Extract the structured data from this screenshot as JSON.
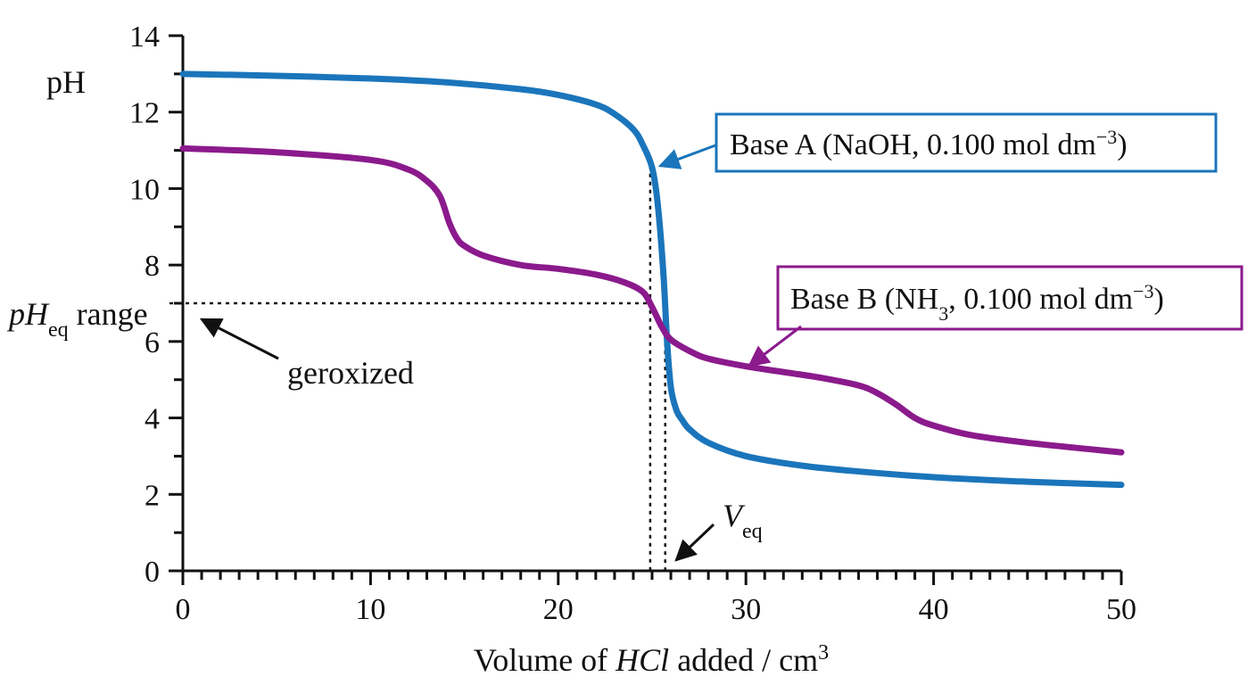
{
  "chart_data": {
    "type": "line",
    "xlabel": {
      "pre": "Volume of ",
      "italic": "HCl",
      "post": " added / cm",
      "sup": "3"
    },
    "ylabel": "pH",
    "xlim": [
      0,
      50
    ],
    "ylim": [
      0,
      14
    ],
    "x_ticks": [
      0,
      10,
      20,
      30,
      40,
      50
    ],
    "x_tick_labels": [
      "0",
      "10",
      "20",
      "30",
      "40",
      "50"
    ],
    "x_minor_step": 1,
    "y_ticks": [
      0,
      2,
      4,
      6,
      8,
      10,
      12,
      14
    ],
    "y_tick_labels": [
      "0",
      "2",
      "4",
      "6",
      "8",
      "10",
      "12",
      "14"
    ],
    "y_minor_step": 1,
    "grid": false,
    "series": [
      {
        "name": "Base A",
        "label": {
          "pre": "Base A (NaOH, 0.100 mol dm",
          "sup": "−3",
          "post": ")"
        },
        "color": "#1b75bb",
        "x": [
          0,
          5,
          10,
          14,
          18,
          20,
          22,
          23,
          24,
          24.5,
          25,
          25.3,
          25.6,
          25.8,
          26,
          26.3,
          26.6,
          27,
          28,
          30,
          33,
          36,
          40,
          45,
          50
        ],
        "y": [
          13.0,
          12.95,
          12.88,
          12.78,
          12.6,
          12.45,
          12.2,
          11.95,
          11.55,
          11.15,
          10.55,
          9.6,
          7.8,
          6.0,
          4.8,
          4.2,
          3.95,
          3.7,
          3.35,
          3.0,
          2.75,
          2.6,
          2.45,
          2.33,
          2.25
        ]
      },
      {
        "name": "Base B",
        "label": {
          "pre": "Base B (NH",
          "sub": "3",
          "post2": ", 0.100 mol dm",
          "sup": "−3",
          "post": ")"
        },
        "color": "#8b1a8c",
        "x": [
          0,
          5,
          10,
          12,
          13,
          13.7,
          14.2,
          14.6,
          15,
          16,
          18,
          20,
          22,
          23.5,
          24.5,
          25,
          25.5,
          26,
          27,
          28,
          30,
          32,
          34,
          36,
          37,
          38,
          39,
          40,
          42,
          45,
          50
        ],
        "y": [
          11.05,
          10.95,
          10.75,
          10.5,
          10.2,
          9.8,
          9.1,
          8.7,
          8.5,
          8.25,
          8.0,
          7.9,
          7.75,
          7.55,
          7.3,
          6.9,
          6.4,
          6.05,
          5.75,
          5.55,
          5.35,
          5.2,
          5.05,
          4.85,
          4.65,
          4.35,
          4.0,
          3.8,
          3.55,
          3.35,
          3.1
        ]
      }
    ],
    "annotations": {
      "pheq": {
        "italic": "pH",
        "sub": "eq",
        "post": " range",
        "value": 7.0
      },
      "geroxized": "geroxized",
      "veq": {
        "italic": "V",
        "sub": "eq"
      },
      "veq_lines_x": [
        24.9,
        25.7
      ],
      "veq_line_y_top": 10.6
    }
  }
}
